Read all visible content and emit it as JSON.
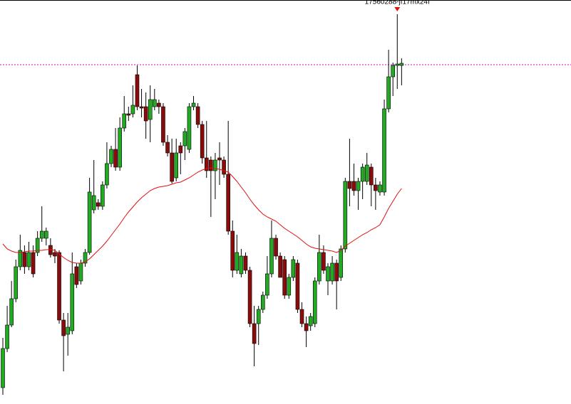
{
  "chart_data": {
    "type": "candlestick",
    "annotation": "17560288-jf17mx24f",
    "ylim": [
      0,
      568
    ],
    "hline": 477,
    "hline_color": "#d000d0",
    "up_color": "#22aa22",
    "down_color": "#8b0b0b",
    "ma_color": "#e01010",
    "open": [
      23,
      78,
      111,
      148,
      193,
      213,
      193,
      213,
      213,
      233,
      233,
      223,
      213,
      213,
      118,
      98,
      103,
      193,
      173,
      198,
      213,
      273,
      283,
      278,
      308,
      338,
      358,
      333,
      388,
      408,
      408,
      463,
      418,
      418,
      400,
      418,
      423,
      418,
      368,
      353,
      318,
      363,
      363,
      358,
      418,
      418,
      393,
      346,
      343,
      328,
      346,
      343,
      323,
      243,
      188,
      183,
      208,
      188,
      113,
      113,
      133,
      153,
      183,
      233,
      208,
      203,
      153,
      178,
      198,
      133,
      113,
      110,
      113,
      173,
      213,
      173,
      173,
      198,
      178,
      218,
      313,
      313,
      300,
      313,
      313,
      333,
      308,
      298,
      298,
      415,
      460,
      476,
      476
    ],
    "high": [
      93,
      138,
      173,
      203,
      238,
      223,
      228,
      223,
      243,
      278,
      248,
      233,
      218,
      216,
      128,
      128,
      213,
      198,
      203,
      218,
      318,
      343,
      288,
      313,
      368,
      363,
      388,
      403,
      433,
      418,
      448,
      476,
      443,
      438,
      448,
      443,
      428,
      423,
      378,
      373,
      373,
      368,
      388,
      423,
      433,
      423,
      398,
      398,
      348,
      353,
      368,
      348,
      398,
      258,
      238,
      218,
      213,
      193,
      138,
      138,
      158,
      208,
      258,
      238,
      213,
      208,
      183,
      208,
      203,
      143,
      123,
      128,
      178,
      238,
      223,
      198,
      208,
      203,
      223,
      318,
      373,
      338,
      318,
      338,
      353,
      338,
      318,
      313,
      428,
      498,
      480,
      548,
      486
    ],
    "low": [
      13,
      73,
      108,
      143,
      188,
      183,
      188,
      178,
      208,
      228,
      223,
      206,
      198,
      113,
      46,
      68,
      98,
      163,
      168,
      193,
      210,
      268,
      273,
      273,
      303,
      333,
      328,
      328,
      383,
      398,
      403,
      413,
      403,
      373,
      368,
      413,
      408,
      363,
      348,
      310,
      313,
      323,
      343,
      353,
      413,
      388,
      338,
      318,
      263,
      288,
      308,
      318,
      238,
      178,
      183,
      178,
      183,
      108,
      53,
      83,
      128,
      148,
      178,
      203,
      178,
      148,
      148,
      173,
      128,
      108,
      80,
      103,
      108,
      168,
      183,
      153,
      168,
      133,
      173,
      213,
      278,
      293,
      273,
      288,
      308,
      278,
      273,
      293,
      293,
      410,
      433,
      443,
      448
    ],
    "close": [
      78,
      111,
      148,
      193,
      216,
      193,
      213,
      183,
      233,
      243,
      243,
      210,
      208,
      118,
      96,
      108,
      183,
      168,
      198,
      213,
      298,
      293,
      278,
      308,
      338,
      358,
      333,
      388,
      408,
      406,
      420,
      418,
      416,
      398,
      428,
      428,
      418,
      368,
      353,
      313,
      353,
      353,
      383,
      418,
      423,
      393,
      346,
      328,
      328,
      343,
      343,
      323,
      243,
      188,
      213,
      208,
      188,
      113,
      85,
      133,
      153,
      183,
      233,
      208,
      178,
      153,
      178,
      203,
      133,
      113,
      103,
      123,
      173,
      213,
      188,
      193,
      198,
      173,
      218,
      313,
      303,
      300,
      313,
      333,
      336,
      308,
      300,
      308,
      415,
      460,
      476,
      478,
      479
    ],
    "ma": [
      225,
      218,
      215,
      213,
      213,
      214,
      215,
      215,
      216,
      216,
      217,
      217,
      216,
      211,
      206,
      202,
      199,
      198,
      198,
      200,
      204,
      210,
      216,
      222,
      229,
      237,
      245,
      253,
      262,
      270,
      277,
      284,
      290,
      295,
      300,
      303,
      305,
      306,
      307,
      309,
      311,
      312,
      315,
      318,
      322,
      326,
      329,
      331,
      332,
      331,
      330,
      328,
      326,
      320,
      313,
      305,
      297,
      288,
      280,
      273,
      267,
      263,
      260,
      257,
      252,
      247,
      243,
      239,
      235,
      230,
      225,
      221,
      219,
      218,
      217,
      216,
      215,
      213,
      216,
      222,
      226,
      230,
      234,
      238,
      241,
      245,
      248,
      252,
      263,
      275,
      285,
      295,
      303
    ]
  }
}
